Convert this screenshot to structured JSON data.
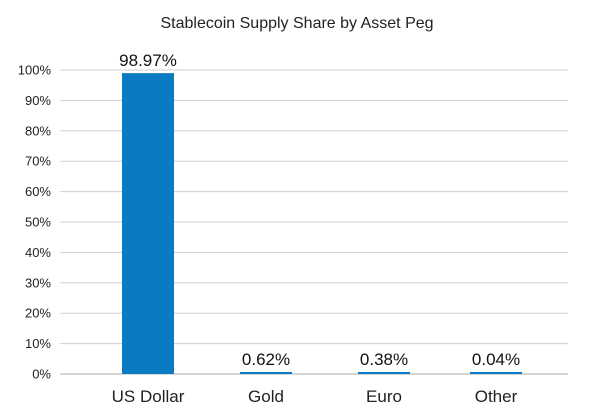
{
  "chart_data": {
    "type": "bar",
    "title": "Stablecoin Supply Share by Asset Peg",
    "xlabel": "",
    "ylabel": "",
    "categories": [
      "US Dollar",
      "Gold",
      "Euro",
      "Other"
    ],
    "values": [
      98.97,
      0.62,
      0.38,
      0.04
    ],
    "data_labels": [
      "98.97%",
      "0.62%",
      "0.38%",
      "0.04%"
    ],
    "ylim": [
      0,
      100
    ],
    "yticks": [
      0,
      10,
      20,
      30,
      40,
      50,
      60,
      70,
      80,
      90,
      100
    ],
    "ytick_labels": [
      "0%",
      "10%",
      "20%",
      "30%",
      "40%",
      "50%",
      "60%",
      "70%",
      "80%",
      "90%",
      "100%"
    ],
    "grid": true,
    "legend": "none",
    "bar_color": "#0a7bc2"
  }
}
